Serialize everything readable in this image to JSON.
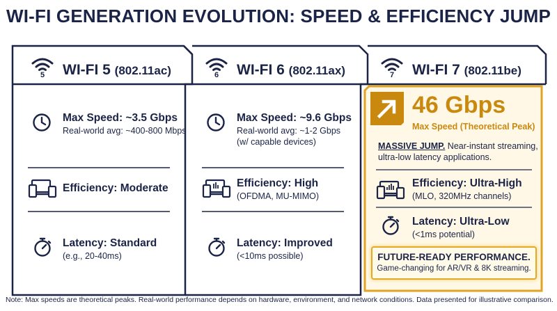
{
  "title": "WI-FI GENERATION EVOLUTION: SPEED & EFFICIENCY JUMP",
  "colors": {
    "navy": "#1b2447",
    "gold": "#c9890f",
    "gold_light": "#fff8e6"
  },
  "columns": [
    {
      "name": "WI-FI 5",
      "standard": "(802.11ac)",
      "wifi_number": "5",
      "speed_title": "Max Speed: ~3.5 Gbps",
      "speed_sub1": "Real-world avg: ~400-800 Mbps",
      "speed_sub2": "",
      "efficiency_title": "Efficiency: Moderate",
      "efficiency_sub": "",
      "latency_title": "Latency: Standard",
      "latency_sub": "(e.g., 20-40ms)"
    },
    {
      "name": "WI-FI 6",
      "standard": "(802.11ax)",
      "wifi_number": "6",
      "speed_title": "Max Speed: ~9.6 Gbps",
      "speed_sub1": "Real-world avg: ~1-2 Gbps",
      "speed_sub2": "(w/ capable devices)",
      "efficiency_title": "Efficiency: High",
      "efficiency_sub": "(OFDMA, MU-MIMO)",
      "latency_title": "Latency: Improved",
      "latency_sub": "(<10ms possible)"
    },
    {
      "name": "WI-FI 7",
      "standard": "(802.11be)",
      "wifi_number": "7",
      "speed_value": "46 Gbps",
      "speed_caption": "Max Speed (Theoretical Peak)",
      "jump_label": "MASSIVE JUMP.",
      "jump_text": " Near-instant streaming, ultra-low latency applications.",
      "efficiency_title": "Efficiency: Ultra-High",
      "efficiency_sub": "(MLO, 320MHz channels)",
      "latency_title": "Latency: Ultra-Low",
      "latency_sub": "(<1ms potential)",
      "future_title": "FUTURE-READY PERFORMANCE.",
      "future_sub": "Game-changing for AR/VR & 8K streaming."
    }
  ],
  "note": "Note: Max speeds are theoretical peaks. Real-world performance depends on hardware, environment, and network conditions. Data presented for illustrative comparison."
}
